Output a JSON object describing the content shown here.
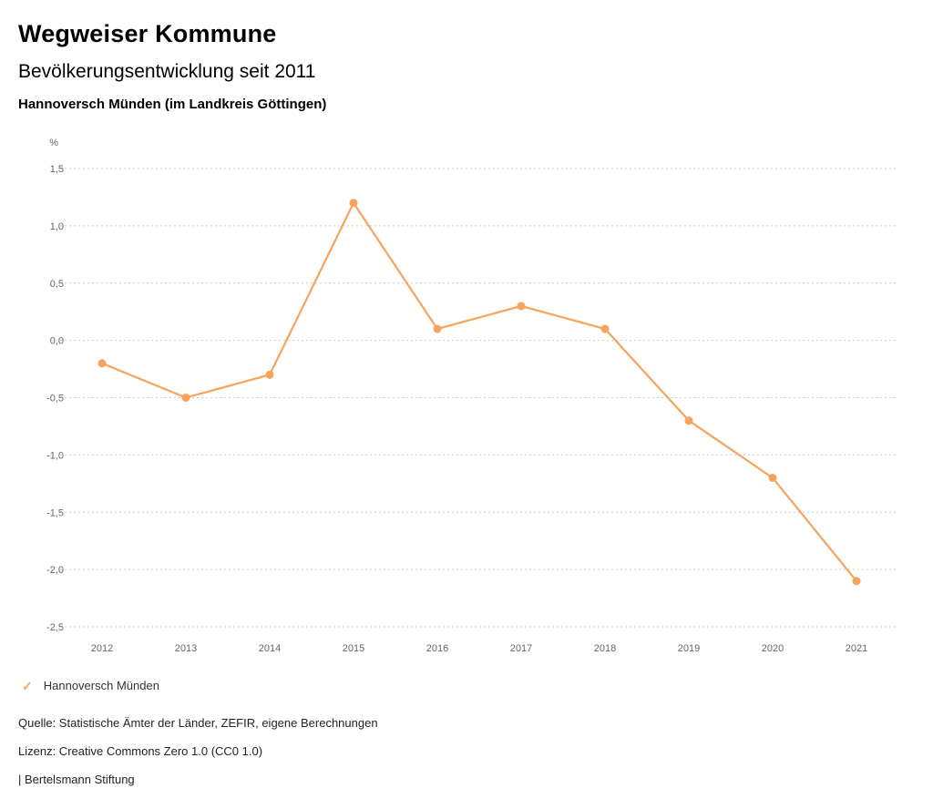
{
  "header": {
    "title": "Wegweiser Kommune",
    "subtitle": "Bevölkerungsentwicklung seit 2011",
    "region": "Hannoversch Münden (im Landkreis Göttingen)"
  },
  "chart_data": {
    "type": "line",
    "title": "Bevölkerungsentwicklung seit 2011",
    "subtitle": "Hannoversch Münden (im Landkreis Göttingen)",
    "xlabel": "",
    "ylabel": "%",
    "categories": [
      "2012",
      "2013",
      "2014",
      "2015",
      "2016",
      "2017",
      "2018",
      "2019",
      "2020",
      "2021"
    ],
    "series": [
      {
        "name": "Hannoversch Münden",
        "color": "#f7a35c",
        "values": [
          -0.2,
          -0.5,
          -0.3,
          1.2,
          0.1,
          0.3,
          0.1,
          -0.7,
          -1.2,
          -2.1
        ]
      }
    ],
    "ylim": [
      -2.5,
      1.5
    ],
    "ytick_values": [
      1.5,
      1.0,
      0.5,
      0.0,
      -0.5,
      -1.0,
      -1.5,
      -2.0,
      -2.5
    ],
    "ytick_labels": [
      "1,5",
      "1,0",
      "0,5",
      "0,0",
      "-0,5",
      "-1,0",
      "-1,5",
      "-2,0",
      "-2,5"
    ],
    "grid": "dotted-horizontal",
    "grid_color": "#cccccc",
    "axis_text_color": "#666666",
    "legend_position": "bottom-left"
  },
  "legend": {
    "items": [
      {
        "label": "Hannoversch Münden",
        "color": "#f7a35c",
        "icon": "check-icon",
        "glyph": "✓"
      }
    ]
  },
  "footer": {
    "source": "Quelle: Statistische Ämter der Länder, ZEFIR, eigene Berechnungen",
    "license": "Lizenz: Creative Commons Zero 1.0 (CC0 1.0)",
    "attribution": "| Bertelsmann Stiftung"
  }
}
